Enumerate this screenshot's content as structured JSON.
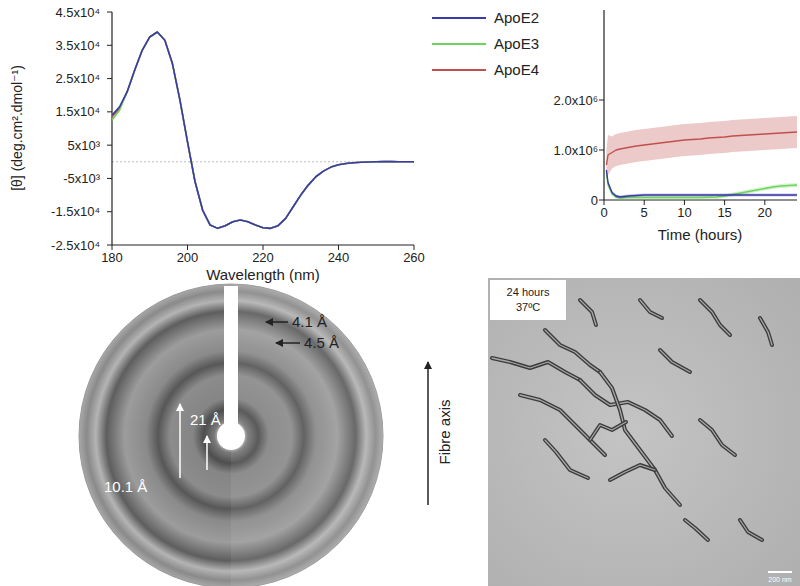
{
  "chart_data": [
    {
      "type": "line",
      "x_label": "Wavelength (nm)",
      "y_label": "[θ] (deg.cm².dmol⁻¹)",
      "x": [
        180,
        182,
        184,
        186,
        188,
        190,
        192,
        194,
        196,
        198,
        200,
        202,
        204,
        206,
        208,
        210,
        212,
        214,
        216,
        218,
        220,
        222,
        224,
        226,
        228,
        230,
        232,
        234,
        236,
        238,
        240,
        242,
        244,
        246,
        248,
        250,
        252,
        254,
        256,
        258,
        260
      ],
      "series": [
        {
          "name": "ApoE2",
          "color": "#3a3aa8",
          "values": [
            14000,
            16500,
            21000,
            27500,
            33500,
            37500,
            39000,
            36500,
            29500,
            18500,
            6000,
            -6000,
            -14500,
            -19000,
            -20000,
            -19200,
            -18000,
            -17500,
            -18000,
            -19000,
            -19800,
            -20000,
            -19200,
            -17000,
            -13500,
            -10000,
            -7000,
            -4500,
            -2800,
            -1600,
            -900,
            -500,
            -300,
            -150,
            -50,
            0,
            50,
            50,
            0,
            0,
            0
          ]
        },
        {
          "name": "ApoE3",
          "color": "#6fd35f",
          "values": [
            12500,
            15500,
            21000,
            27500,
            33500,
            37500,
            39000,
            36500,
            29500,
            18500,
            6000,
            -6000,
            -14500,
            -19000,
            -20000,
            -19200,
            -18000,
            -17500,
            -18000,
            -19000,
            -19800,
            -20000,
            -19200,
            -17000,
            -13500,
            -10000,
            -7000,
            -4500,
            -2800,
            -1600,
            -900,
            -500,
            -300,
            -150,
            -50,
            0,
            50,
            50,
            0,
            0,
            0
          ]
        },
        {
          "name": "ApoE4",
          "color": "#c0504d",
          "values": [
            13500,
            16000,
            21000,
            27500,
            33500,
            37500,
            39000,
            36500,
            29500,
            18500,
            6000,
            -6000,
            -14500,
            -19000,
            -20000,
            -19200,
            -18000,
            -17500,
            -18000,
            -19000,
            -19800,
            -20000,
            -19200,
            -17000,
            -13500,
            -10000,
            -7000,
            -4500,
            -2800,
            -1600,
            -900,
            -500,
            -300,
            -150,
            -50,
            0,
            50,
            50,
            0,
            0,
            0
          ]
        }
      ],
      "xlim": [
        180,
        260
      ],
      "ylim": [
        -25000,
        45000
      ],
      "xticks": [
        180,
        200,
        220,
        240,
        260
      ],
      "yticks": [
        {
          "value": 45000,
          "label": "4.5x10⁴"
        },
        {
          "value": 35000,
          "label": "3.5x10⁴"
        },
        {
          "value": 25000,
          "label": "2.5x10⁴"
        },
        {
          "value": 15000,
          "label": "1.5x10⁴"
        },
        {
          "value": 5000,
          "label": "5x10³"
        },
        {
          "value": -5000,
          "label": "-5x10³"
        },
        {
          "value": -15000,
          "label": "-1.5x10⁴"
        },
        {
          "value": -25000,
          "label": "-2.5x10⁴"
        }
      ],
      "legend": "upper right",
      "grid": false
    },
    {
      "type": "line",
      "x_label": "Time (hours)",
      "x": [
        0.3,
        0.5,
        1,
        1.5,
        2,
        3,
        4,
        5,
        6,
        7,
        8,
        9,
        10,
        11,
        12,
        13,
        14,
        15,
        16,
        17,
        18,
        19,
        20,
        21,
        22,
        23,
        24
      ],
      "series": [
        {
          "color": "#c0504d",
          "values": [
            700000,
            900000,
            950000,
            1000000,
            1020000,
            1050000,
            1080000,
            1100000,
            1120000,
            1140000,
            1160000,
            1180000,
            1200000,
            1210000,
            1220000,
            1240000,
            1250000,
            1260000,
            1280000,
            1290000,
            1300000,
            1310000,
            1320000,
            1330000,
            1340000,
            1350000,
            1360000
          ],
          "errors": [
            300000,
            400000,
            320000,
            320000,
            320000,
            320000,
            320000,
            320000,
            320000,
            320000,
            320000,
            320000,
            320000,
            320000,
            320000,
            320000,
            320000,
            320000,
            320000,
            320000,
            320000,
            320000,
            320000,
            320000,
            320000,
            320000,
            320000
          ]
        },
        {
          "color": "#6fd35f",
          "values": [
            550000,
            300000,
            120000,
            60000,
            40000,
            50000,
            50000,
            50000,
            50000,
            50000,
            50000,
            50000,
            50000,
            50000,
            50000,
            55000,
            60000,
            80000,
            110000,
            140000,
            170000,
            200000,
            230000,
            260000,
            280000,
            290000,
            300000
          ],
          "errors": [
            40000,
            40000,
            40000,
            40000,
            40000,
            40000,
            40000,
            40000,
            40000,
            40000,
            40000,
            40000,
            40000,
            40000,
            40000,
            40000,
            40000,
            40000,
            40000,
            40000,
            40000,
            40000,
            40000,
            40000,
            40000,
            40000,
            40000
          ]
        },
        {
          "color": "#3a3aa8",
          "values": [
            600000,
            350000,
            150000,
            80000,
            60000,
            80000,
            90000,
            100000,
            100000,
            100000,
            100000,
            100000,
            100000,
            100000,
            100000,
            100000,
            100000,
            100000,
            100000,
            100000,
            100000,
            100000,
            100000,
            100000,
            100000,
            100000,
            100000
          ],
          "errors": [
            30000,
            30000,
            30000,
            30000,
            30000,
            30000,
            30000,
            30000,
            30000,
            30000,
            30000,
            30000,
            30000,
            30000,
            30000,
            30000,
            30000,
            30000,
            30000,
            30000,
            30000,
            30000,
            30000,
            30000,
            30000,
            30000,
            30000
          ]
        }
      ],
      "xlim": [
        0,
        24
      ],
      "ylim": [
        0,
        3800000
      ],
      "xticks": [
        0,
        5,
        10,
        15,
        20
      ],
      "yticks": [
        0,
        {
          "value": 1000000,
          "label": "1.0x10⁶"
        },
        {
          "value": 2000000,
          "label": "2.0x10⁶"
        }
      ],
      "grid": false
    }
  ],
  "diffraction": {
    "reflections": [
      "4.1 Å",
      "4.5 Å",
      "21 Å",
      "10.1 Å"
    ],
    "axis_label": "Fibre axis"
  },
  "micrograph": {
    "caption": [
      "24 hours",
      "37ºC"
    ],
    "scale_bar": "200 nm"
  }
}
